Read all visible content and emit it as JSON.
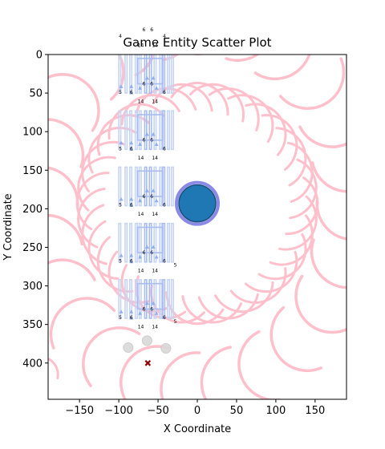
{
  "chart_data": {
    "type": "scatter",
    "title": "Game Entity Scatter Plot",
    "xlabel": "X Coordinate",
    "ylabel": "Y Coordinate",
    "xlim": [
      -190,
      190
    ],
    "ylim": [
      447,
      0
    ],
    "y_inverted": true,
    "xticks": [
      -150,
      -100,
      -50,
      0,
      50,
      100,
      150
    ],
    "yticks": [
      0,
      50,
      100,
      150,
      200,
      250,
      300,
      350,
      400
    ],
    "grid": false,
    "colors": {
      "arc": "#ffc0cb",
      "rect": "#c6d4f5",
      "rect_strong": "#a9bdf2",
      "triangle": "#8fb0ee",
      "player": "#1f77b4",
      "player_ring": "#8a8ae6",
      "circle": "#d9d9d9",
      "cross": "#8b0000"
    },
    "player": {
      "x": 0,
      "y": 193,
      "label": "player"
    },
    "circles": [
      {
        "x": -88,
        "y": 380
      },
      {
        "x": -64,
        "y": 371
      },
      {
        "x": -40,
        "y": 381
      }
    ],
    "cross": {
      "x": -63,
      "y": 400
    },
    "column_offsets": [
      0,
      73,
      146,
      219,
      292
    ],
    "triangles": [
      {
        "x": -97,
        "y": 42
      },
      {
        "x": -84,
        "y": 42
      },
      {
        "x": -73,
        "y": 44
      },
      {
        "x": -64,
        "y": 31
      },
      {
        "x": -56,
        "y": 31
      },
      {
        "x": -52,
        "y": 44
      },
      {
        "x": -84,
        "y": 50
      }
    ],
    "number_labels": [
      {
        "x": -98,
        "y": 51,
        "text": "5"
      },
      {
        "x": -84,
        "y": 51,
        "text": "6"
      },
      {
        "x": -68,
        "y": 40,
        "text": "6"
      },
      {
        "x": -58,
        "y": 40,
        "text": "6"
      },
      {
        "x": -42,
        "y": 51,
        "text": "6"
      },
      {
        "x": -72,
        "y": 63,
        "text": "14"
      },
      {
        "x": -54,
        "y": 63,
        "text": "14"
      },
      {
        "x": -28,
        "y": 56,
        "text": "5"
      }
    ]
  }
}
